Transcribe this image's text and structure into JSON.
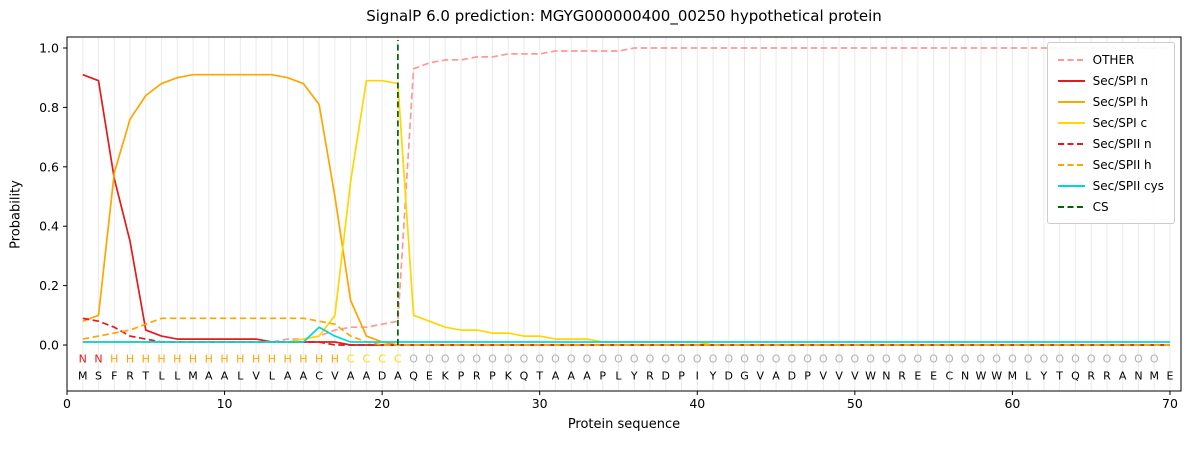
{
  "title": "SignalP 6.0 prediction: MGYG000000400_00250 hypothetical protein",
  "axes": {
    "x_label": "Protein sequence",
    "y_label": "Probability",
    "x_ticks": [
      "0",
      "10",
      "20",
      "30",
      "40",
      "50",
      "60",
      "70"
    ],
    "x_tick_values": [
      0,
      10,
      20,
      30,
      40,
      50,
      60,
      70
    ],
    "y_ticks": [
      "0.0",
      "0.2",
      "0.4",
      "0.6",
      "0.8",
      "1.0"
    ],
    "y_tick_values": [
      0.0,
      0.2,
      0.4,
      0.6,
      0.8,
      1.0
    ]
  },
  "legend": {
    "position": "upper right",
    "items": [
      {
        "label": "OTHER",
        "color": "#ff9896",
        "dash": true
      },
      {
        "label": "Sec/SPI n",
        "color": "#e41a1c",
        "dash": false
      },
      {
        "label": "Sec/SPI h",
        "color": "#ffa500",
        "dash": false
      },
      {
        "label": "Sec/SPI c",
        "color": "#ffd700",
        "dash": false
      },
      {
        "label": "Sec/SPII n",
        "color": "#e41a1c",
        "dash": true
      },
      {
        "label": "Sec/SPII h",
        "color": "#ffa500",
        "dash": true
      },
      {
        "label": "Sec/SPII cys",
        "color": "#00d7d7",
        "dash": false
      },
      {
        "label": "CS",
        "color": "#006400",
        "dash": true
      }
    ]
  },
  "chart_data": {
    "type": "line",
    "title": "SignalP 6.0 prediction: MGYG000000400_00250 hypothetical protein",
    "xlabel": "Protein sequence",
    "ylabel": "Probability",
    "xlim": [
      0,
      70.7
    ],
    "ylim": [
      0.0,
      1.05
    ],
    "grid": "vertical line at every residue position",
    "grid_color": "#eaeaea",
    "legend_position": "upper right",
    "x_start": 1,
    "cs_position": 21,
    "cs_color": "#006400",
    "sequence": "MSFRTLLMAALVLAACVAADAQEKPRPKQTAAAPLYRDPIYDGVADPVVVWNREECNWWMLYTQRRANME",
    "region_annotation": "NNHHHHHHHHHHHHHHHCCCCOOOOOOOOOOOOOOOOOOOOOOOOOOOOOOOOOOOOOOOOOOOOOOOO",
    "region_colors": {
      "N": "#e41a1c",
      "H": "#ffa500",
      "C": "#ffd700",
      "O": "#b0b0b0"
    },
    "series": [
      {
        "name": "OTHER",
        "color": "#ff9896",
        "dash": true,
        "values": [
          0.01,
          0.01,
          0.01,
          0.01,
          0.01,
          0.01,
          0.01,
          0.01,
          0.01,
          0.01,
          0.01,
          0.01,
          0.01,
          0.02,
          0.02,
          0.03,
          0.05,
          0.06,
          0.06,
          0.07,
          0.08,
          0.93,
          0.95,
          0.96,
          0.96,
          0.97,
          0.97,
          0.98,
          0.98,
          0.98,
          0.99,
          0.99,
          0.99,
          0.99,
          0.99,
          1.0,
          1.0,
          1.0,
          1.0,
          1.0,
          1.0,
          1.0,
          1.0,
          1.0,
          1.0,
          1.0,
          1.0,
          1.0,
          1.0,
          1.0,
          1.0,
          1.0,
          1.0,
          1.0,
          1.0,
          1.0,
          1.0,
          1.0,
          1.0,
          1.0,
          1.0,
          1.0,
          1.0,
          1.0,
          1.0,
          1.0,
          1.0,
          1.0,
          1.0,
          1.0
        ]
      },
      {
        "name": "Sec/SPI n",
        "color": "#e41a1c",
        "dash": false,
        "values": [
          0.91,
          0.89,
          0.56,
          0.35,
          0.05,
          0.03,
          0.02,
          0.02,
          0.02,
          0.02,
          0.02,
          0.02,
          0.01,
          0.01,
          0.01,
          0.01,
          0.01,
          0.0,
          0.0,
          0.0,
          0.0,
          0.0,
          0.0,
          0.0,
          0.0,
          0.0,
          0.0,
          0.0,
          0.0,
          0.0,
          0.0,
          0.0,
          0.0,
          0.0,
          0.0,
          0.0,
          0.0,
          0.0,
          0.0,
          0.0,
          0.0,
          0.0,
          0.0,
          0.0,
          0.0,
          0.0,
          0.0,
          0.0,
          0.0,
          0.0,
          0.0,
          0.0,
          0.0,
          0.0,
          0.0,
          0.0,
          0.0,
          0.0,
          0.0,
          0.0,
          0.0,
          0.0,
          0.0,
          0.0,
          0.0,
          0.0,
          0.0,
          0.0,
          0.0,
          0.0
        ]
      },
      {
        "name": "Sec/SPI h",
        "color": "#ffa500",
        "dash": false,
        "values": [
          0.08,
          0.1,
          0.58,
          0.76,
          0.84,
          0.88,
          0.9,
          0.91,
          0.91,
          0.91,
          0.91,
          0.91,
          0.91,
          0.9,
          0.88,
          0.81,
          0.5,
          0.15,
          0.03,
          0.01,
          0.0,
          0.0,
          0.0,
          0.0,
          0.0,
          0.0,
          0.0,
          0.0,
          0.0,
          0.0,
          0.0,
          0.0,
          0.0,
          0.0,
          0.0,
          0.0,
          0.0,
          0.0,
          0.0,
          0.0,
          0.0,
          0.0,
          0.0,
          0.0,
          0.0,
          0.0,
          0.0,
          0.0,
          0.0,
          0.0,
          0.0,
          0.0,
          0.0,
          0.0,
          0.0,
          0.0,
          0.0,
          0.0,
          0.0,
          0.0,
          0.0,
          0.0,
          0.0,
          0.0,
          0.0,
          0.0,
          0.0,
          0.0,
          0.0,
          0.0
        ]
      },
      {
        "name": "Sec/SPI c",
        "color": "#ffd700",
        "dash": false,
        "values": [
          0.01,
          0.01,
          0.01,
          0.01,
          0.01,
          0.01,
          0.01,
          0.01,
          0.01,
          0.01,
          0.01,
          0.01,
          0.01,
          0.01,
          0.02,
          0.03,
          0.1,
          0.55,
          0.89,
          0.89,
          0.88,
          0.1,
          0.08,
          0.06,
          0.05,
          0.05,
          0.04,
          0.04,
          0.03,
          0.03,
          0.02,
          0.02,
          0.02,
          0.01,
          0.01,
          0.01,
          0.01,
          0.01,
          0.01,
          0.01,
          0.0,
          0.0,
          0.0,
          0.0,
          0.0,
          0.0,
          0.0,
          0.0,
          0.0,
          0.0,
          0.0,
          0.0,
          0.0,
          0.0,
          0.0,
          0.0,
          0.0,
          0.0,
          0.0,
          0.0,
          0.0,
          0.0,
          0.0,
          0.0,
          0.0,
          0.0,
          0.0,
          0.0,
          0.0,
          0.0
        ]
      },
      {
        "name": "Sec/SPII n",
        "color": "#e41a1c",
        "dash": true,
        "values": [
          0.09,
          0.08,
          0.06,
          0.03,
          0.02,
          0.01,
          0.01,
          0.01,
          0.01,
          0.01,
          0.01,
          0.01,
          0.01,
          0.01,
          0.01,
          0.01,
          0.0,
          0.0,
          0.0,
          0.0,
          0.0,
          0.0,
          0.0,
          0.0,
          0.0,
          0.0,
          0.0,
          0.0,
          0.0,
          0.0,
          0.0,
          0.0,
          0.0,
          0.0,
          0.0,
          0.0,
          0.0,
          0.0,
          0.0,
          0.0,
          0.0,
          0.0,
          0.0,
          0.0,
          0.0,
          0.0,
          0.0,
          0.0,
          0.0,
          0.0,
          0.0,
          0.0,
          0.0,
          0.0,
          0.0,
          0.0,
          0.0,
          0.0,
          0.0,
          0.0,
          0.0,
          0.0,
          0.0,
          0.0,
          0.0,
          0.0,
          0.0,
          0.0,
          0.0,
          0.0
        ]
      },
      {
        "name": "Sec/SPII h",
        "color": "#ffa500",
        "dash": true,
        "values": [
          0.02,
          0.03,
          0.04,
          0.05,
          0.07,
          0.09,
          0.09,
          0.09,
          0.09,
          0.09,
          0.09,
          0.09,
          0.09,
          0.09,
          0.09,
          0.08,
          0.07,
          0.03,
          0.01,
          0.0,
          0.0,
          0.0,
          0.0,
          0.0,
          0.0,
          0.0,
          0.0,
          0.0,
          0.0,
          0.0,
          0.0,
          0.0,
          0.0,
          0.0,
          0.0,
          0.0,
          0.0,
          0.0,
          0.0,
          0.0,
          0.0,
          0.0,
          0.0,
          0.0,
          0.0,
          0.0,
          0.0,
          0.0,
          0.0,
          0.0,
          0.0,
          0.0,
          0.0,
          0.0,
          0.0,
          0.0,
          0.0,
          0.0,
          0.0,
          0.0,
          0.0,
          0.0,
          0.0,
          0.0,
          0.0,
          0.0,
          0.0,
          0.0,
          0.0,
          0.0
        ]
      },
      {
        "name": "Sec/SPII cys",
        "color": "#00d7d7",
        "dash": false,
        "values": [
          0.01,
          0.01,
          0.01,
          0.01,
          0.01,
          0.01,
          0.01,
          0.01,
          0.01,
          0.01,
          0.01,
          0.01,
          0.01,
          0.01,
          0.01,
          0.06,
          0.03,
          0.01,
          0.01,
          0.01,
          0.01,
          0.01,
          0.01,
          0.01,
          0.01,
          0.01,
          0.01,
          0.01,
          0.01,
          0.01,
          0.01,
          0.01,
          0.01,
          0.01,
          0.01,
          0.01,
          0.01,
          0.01,
          0.01,
          0.01,
          0.01,
          0.01,
          0.01,
          0.01,
          0.01,
          0.01,
          0.01,
          0.01,
          0.01,
          0.01,
          0.01,
          0.01,
          0.01,
          0.01,
          0.01,
          0.01,
          0.01,
          0.01,
          0.01,
          0.01,
          0.01,
          0.01,
          0.01,
          0.01,
          0.01,
          0.01,
          0.01,
          0.01,
          0.01,
          0.01
        ]
      }
    ]
  }
}
